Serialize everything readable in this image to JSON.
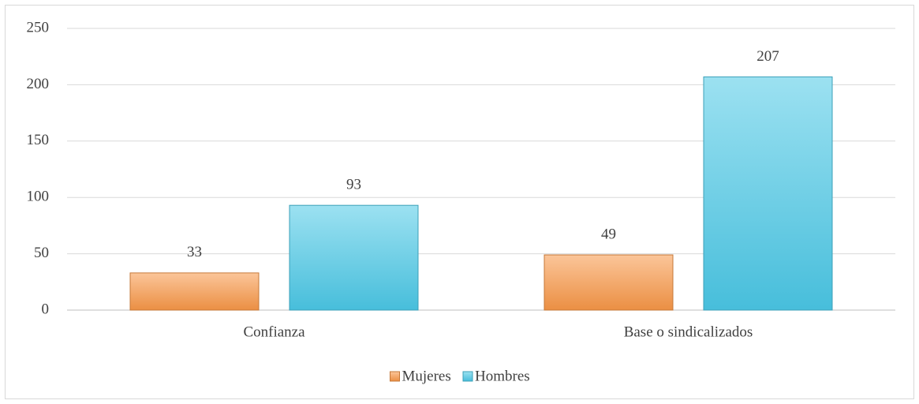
{
  "chart_data": {
    "type": "bar",
    "categories": [
      "Confianza",
      "Base o sindicalizados"
    ],
    "series": [
      {
        "name": "Mujeres",
        "color": "#f79646",
        "values": [
          33,
          49
        ]
      },
      {
        "name": "Hombres",
        "color": "#4bc8e6",
        "values": [
          93,
          207
        ]
      }
    ],
    "ylim": [
      0,
      250
    ],
    "yticks": [
      0,
      50,
      100,
      150,
      200,
      250
    ],
    "grid": true,
    "legend": "bottom",
    "data_labels": true
  }
}
